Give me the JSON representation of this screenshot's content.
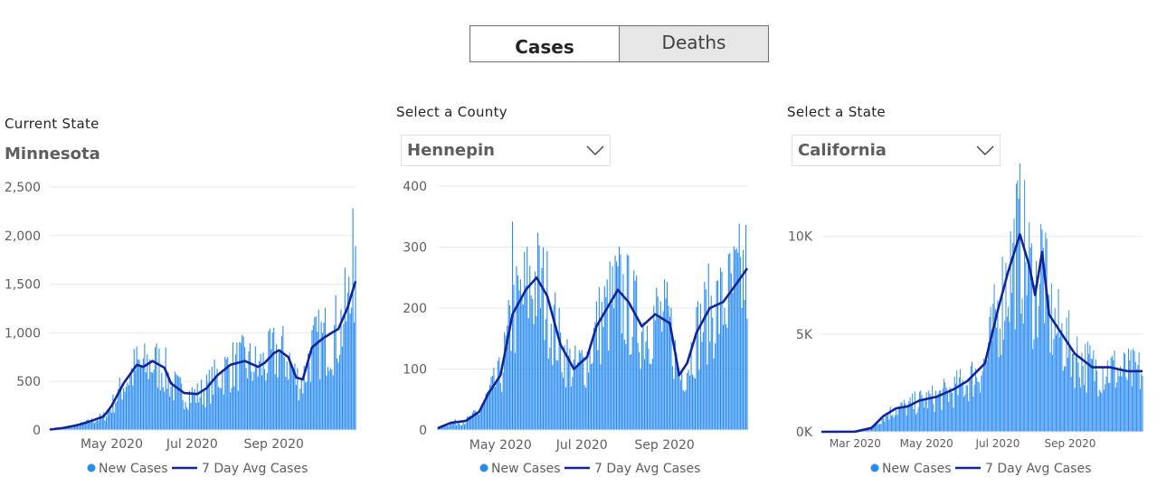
{
  "toggle": {
    "cases_label": "Cases",
    "deaths_label": "Deaths",
    "selected": "Cases"
  },
  "panels": {
    "state": {
      "label": "Current State",
      "value": "Minnesota"
    },
    "county": {
      "label": "Select a County",
      "value": "Hennepin"
    },
    "compare": {
      "label": "Select a State",
      "value": "California"
    }
  },
  "colors": {
    "bar": "#2b8cf0",
    "line": "#11239a",
    "grid": "#e8e8e8",
    "axis_text": "#605e5c"
  },
  "legend": {
    "bar_label": "New Cases",
    "line_label": "7 Day Avg Cases"
  },
  "chart_data": [
    {
      "type": "bar",
      "title": "Minnesota",
      "x_range": [
        "2020-03-15",
        "2020-11-02"
      ],
      "x_ticks": [
        {
          "label": "May 2020",
          "date": "2020-05-01"
        },
        {
          "label": "Jul 2020",
          "date": "2020-07-01"
        },
        {
          "label": "Sep 2020",
          "date": "2020-09-01"
        }
      ],
      "ylim": [
        0,
        2500
      ],
      "y_ticks": [
        {
          "label": "0",
          "value": 0
        },
        {
          "label": "500",
          "value": 500
        },
        {
          "label": "1,000",
          "value": 1000
        },
        {
          "label": "1,500",
          "value": 1500
        },
        {
          "label": "2,000",
          "value": 2000
        },
        {
          "label": "2,500",
          "value": 2500
        }
      ],
      "series": [
        {
          "name": "New Cases",
          "kind": "bar"
        },
        {
          "name": "7 Day Avg Cases",
          "kind": "line"
        }
      ],
      "avg_points": [
        [
          "2020-03-15",
          5
        ],
        [
          "2020-03-25",
          20
        ],
        [
          "2020-04-05",
          50
        ],
        [
          "2020-04-15",
          90
        ],
        [
          "2020-04-25",
          140
        ],
        [
          "2020-05-01",
          250
        ],
        [
          "2020-05-10",
          480
        ],
        [
          "2020-05-20",
          670
        ],
        [
          "2020-05-25",
          650
        ],
        [
          "2020-06-01",
          710
        ],
        [
          "2020-06-10",
          640
        ],
        [
          "2020-06-15",
          480
        ],
        [
          "2020-06-25",
          380
        ],
        [
          "2020-07-05",
          370
        ],
        [
          "2020-07-12",
          430
        ],
        [
          "2020-07-20",
          560
        ],
        [
          "2020-07-30",
          670
        ],
        [
          "2020-08-10",
          710
        ],
        [
          "2020-08-20",
          650
        ],
        [
          "2020-08-25",
          690
        ],
        [
          "2020-09-01",
          790
        ],
        [
          "2020-09-05",
          820
        ],
        [
          "2020-09-12",
          750
        ],
        [
          "2020-09-18",
          540
        ],
        [
          "2020-09-23",
          520
        ],
        [
          "2020-09-30",
          850
        ],
        [
          "2020-10-08",
          940
        ],
        [
          "2020-10-15",
          1000
        ],
        [
          "2020-10-20",
          1040
        ],
        [
          "2020-10-27",
          1260
        ],
        [
          "2020-11-02",
          1530
        ]
      ],
      "peak_bar": {
        "date": "2020-10-31",
        "value": 2280
      }
    },
    {
      "type": "bar",
      "title": "Hennepin",
      "x_range": [
        "2020-03-15",
        "2020-11-02"
      ],
      "x_ticks": [
        {
          "label": "May 2020",
          "date": "2020-05-01"
        },
        {
          "label": "Jul 2020",
          "date": "2020-07-01"
        },
        {
          "label": "Sep 2020",
          "date": "2020-09-01"
        }
      ],
      "ylim": [
        0,
        400
      ],
      "y_ticks": [
        {
          "label": "0",
          "value": 0
        },
        {
          "label": "100",
          "value": 100
        },
        {
          "label": "200",
          "value": 200
        },
        {
          "label": "300",
          "value": 300
        },
        {
          "label": "400",
          "value": 400
        }
      ],
      "series": [
        {
          "name": "New Cases",
          "kind": "bar"
        },
        {
          "name": "7 Day Avg Cases",
          "kind": "line"
        }
      ],
      "avg_points": [
        [
          "2020-03-15",
          3
        ],
        [
          "2020-03-25",
          12
        ],
        [
          "2020-04-05",
          15
        ],
        [
          "2020-04-15",
          30
        ],
        [
          "2020-04-22",
          60
        ],
        [
          "2020-05-01",
          90
        ],
        [
          "2020-05-10",
          190
        ],
        [
          "2020-05-20",
          230
        ],
        [
          "2020-05-28",
          250
        ],
        [
          "2020-06-05",
          220
        ],
        [
          "2020-06-15",
          140
        ],
        [
          "2020-06-25",
          100
        ],
        [
          "2020-07-05",
          120
        ],
        [
          "2020-07-12",
          170
        ],
        [
          "2020-07-20",
          200
        ],
        [
          "2020-07-28",
          230
        ],
        [
          "2020-08-05",
          210
        ],
        [
          "2020-08-15",
          170
        ],
        [
          "2020-08-25",
          190
        ],
        [
          "2020-09-05",
          175
        ],
        [
          "2020-09-12",
          90
        ],
        [
          "2020-09-18",
          110
        ],
        [
          "2020-09-25",
          160
        ],
        [
          "2020-10-05",
          200
        ],
        [
          "2020-10-15",
          210
        ],
        [
          "2020-10-25",
          240
        ],
        [
          "2020-11-02",
          265
        ]
      ],
      "peak_bar": {
        "date": "2020-05-10",
        "value": 342
      }
    },
    {
      "type": "bar",
      "title": "California",
      "x_range": [
        "2020-02-01",
        "2020-11-02"
      ],
      "x_ticks": [
        {
          "label": "Mar 2020",
          "date": "2020-03-01"
        },
        {
          "label": "May 2020",
          "date": "2020-05-01"
        },
        {
          "label": "Jul 2020",
          "date": "2020-07-01"
        },
        {
          "label": "Sep 2020",
          "date": "2020-09-01"
        }
      ],
      "ylim": [
        0,
        13500
      ],
      "y_ticks": [
        {
          "label": "0K",
          "value": 0
        },
        {
          "label": "5K",
          "value": 5000
        },
        {
          "label": "10K",
          "value": 10000
        }
      ],
      "series": [
        {
          "name": "New Cases",
          "kind": "bar"
        },
        {
          "name": "7 Day Avg Cases",
          "kind": "line"
        }
      ],
      "avg_points": [
        [
          "2020-02-01",
          0
        ],
        [
          "2020-03-01",
          10
        ],
        [
          "2020-03-15",
          200
        ],
        [
          "2020-03-25",
          800
        ],
        [
          "2020-04-05",
          1200
        ],
        [
          "2020-04-15",
          1300
        ],
        [
          "2020-04-25",
          1600
        ],
        [
          "2020-05-10",
          1800
        ],
        [
          "2020-05-25",
          2200
        ],
        [
          "2020-06-05",
          2600
        ],
        [
          "2020-06-20",
          3500
        ],
        [
          "2020-07-01",
          6200
        ],
        [
          "2020-07-10",
          8200
        ],
        [
          "2020-07-20",
          10100
        ],
        [
          "2020-07-28",
          8500
        ],
        [
          "2020-08-02",
          7000
        ],
        [
          "2020-08-08",
          9200
        ],
        [
          "2020-08-14",
          6000
        ],
        [
          "2020-08-25",
          5000
        ],
        [
          "2020-09-05",
          4000
        ],
        [
          "2020-09-20",
          3300
        ],
        [
          "2020-10-05",
          3300
        ],
        [
          "2020-10-20",
          3100
        ],
        [
          "2020-11-02",
          3100
        ]
      ],
      "peak_bar": {
        "date": "2020-07-17",
        "value": 12700
      }
    }
  ]
}
